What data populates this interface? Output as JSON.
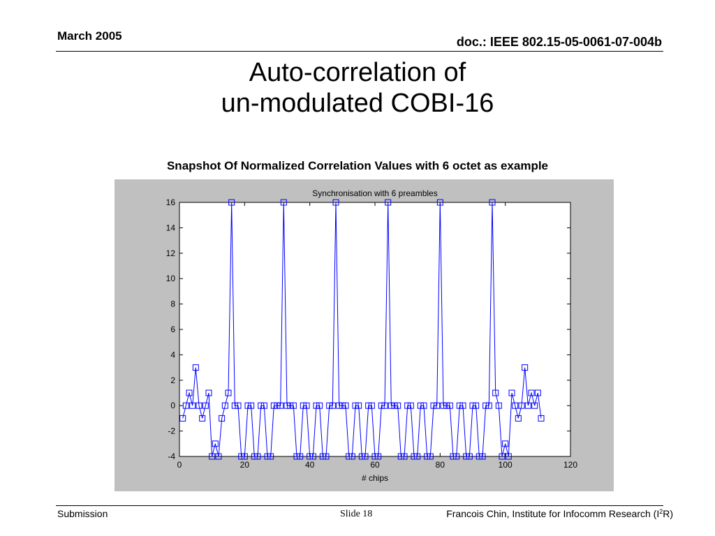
{
  "header": {
    "date": "March 2005",
    "doc_id": "doc.: IEEE 802.15-05-0061-07-004b"
  },
  "slide_title": {
    "line1": "Auto-correlation of",
    "line2": "un-modulated COBI-16"
  },
  "subtitle": "Snapshot Of Normalized Correlation Values with 6 octet as example",
  "footer": {
    "left": "Submission",
    "slide_label": "Slide 18",
    "author_prefix": "Francois Chin, Institute for Infocomm Research (I",
    "author_sup": "2",
    "author_suffix": "R)"
  },
  "colors": {
    "series": "#0000ff",
    "figure_bg": "#c0c0c0",
    "axes_bg": "#ffffff"
  },
  "chart_data": {
    "type": "line",
    "title": "Synchronisation with 6 preambles",
    "xlabel": "# chips",
    "ylabel": "",
    "xlim": [
      0,
      120
    ],
    "ylim": [
      -4,
      16
    ],
    "xticks": [
      0,
      20,
      40,
      60,
      80,
      100,
      120
    ],
    "yticks": [
      -4,
      -2,
      0,
      2,
      4,
      6,
      8,
      10,
      12,
      14,
      16
    ],
    "grid": false,
    "marker": "square",
    "series": [
      {
        "x": [
          1,
          2,
          3,
          4,
          5,
          6,
          7,
          8,
          9,
          10,
          11,
          12,
          13,
          14,
          15,
          16,
          17,
          18,
          19,
          20,
          21,
          22,
          23,
          24,
          25,
          26,
          27,
          28,
          29,
          30,
          31,
          32,
          33,
          34,
          35,
          36,
          37,
          38,
          39,
          40,
          41,
          42,
          43,
          44,
          45,
          46,
          47,
          48,
          49,
          50,
          51,
          52,
          53,
          54,
          55,
          56,
          57,
          58,
          59,
          60,
          61,
          62,
          63,
          64,
          65,
          66,
          67,
          68,
          69,
          70,
          71,
          72,
          73,
          74,
          75,
          76,
          77,
          78,
          79,
          80,
          81,
          82,
          83,
          84,
          85,
          86,
          87,
          88,
          89,
          90,
          91,
          92,
          93,
          94,
          95,
          96,
          97,
          98,
          99,
          100,
          101,
          102,
          103,
          104,
          105,
          106,
          107,
          108,
          109,
          110,
          111
        ],
        "values": [
          -1,
          0,
          1,
          0,
          3,
          0,
          -1,
          0,
          1,
          -4,
          -3,
          -4,
          -1,
          0,
          1,
          16,
          0,
          0,
          -4,
          -4,
          0,
          0,
          -4,
          -4,
          0,
          0,
          -4,
          -4,
          0,
          0,
          0,
          16,
          0,
          0,
          0,
          -4,
          -4,
          0,
          0,
          -4,
          -4,
          0,
          0,
          -4,
          -4,
          0,
          0,
          16,
          0,
          0,
          0,
          -4,
          -4,
          0,
          0,
          -4,
          -4,
          0,
          0,
          -4,
          -4,
          0,
          0,
          16,
          0,
          0,
          0,
          -4,
          -4,
          0,
          0,
          -4,
          -4,
          0,
          0,
          -4,
          -4,
          0,
          0,
          16,
          0,
          0,
          0,
          -4,
          -4,
          0,
          0,
          -4,
          -4,
          0,
          0,
          -4,
          -4,
          0,
          0,
          16,
          1,
          0,
          -4,
          -3,
          -4,
          1,
          0,
          -1,
          0,
          3,
          0,
          1,
          0,
          1,
          -1
        ]
      }
    ]
  }
}
